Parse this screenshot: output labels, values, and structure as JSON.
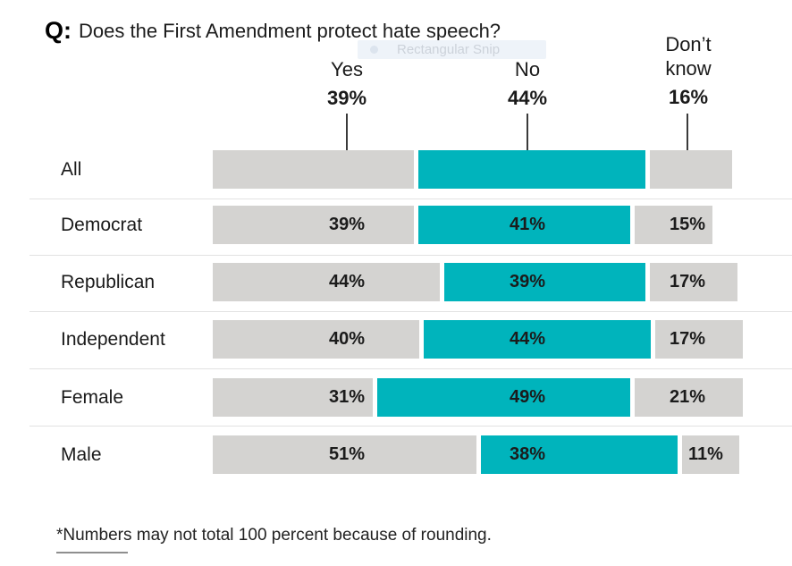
{
  "title": {
    "q_prefix": "Q:",
    "question": "Does the First Amendment protect hate speech?"
  },
  "snip_tooltip": {
    "label": "Rectangular Snip"
  },
  "header": {
    "columns": [
      {
        "label": "Yes",
        "value": "39%"
      },
      {
        "label": "No",
        "value": "44%"
      },
      {
        "label": "Don’t know",
        "value": "16%"
      }
    ]
  },
  "chart_data": {
    "type": "bar",
    "stacked": true,
    "orientation": "horizontal",
    "title": "Q: Does the First Amendment protect hate speech?",
    "categories": [
      "All",
      "Democrat",
      "Republican",
      "Independent",
      "Female",
      "Male"
    ],
    "series": [
      {
        "name": "Yes",
        "color": "#d4d3d1",
        "values": [
          39,
          39,
          44,
          40,
          31,
          51
        ]
      },
      {
        "name": "No",
        "color": "#00b4bc",
        "values": [
          44,
          41,
          39,
          44,
          49,
          38
        ]
      },
      {
        "name": "Don’t know",
        "color": "#d4d3d1",
        "values": [
          16,
          15,
          17,
          17,
          21,
          11
        ]
      }
    ],
    "value_suffix": "%",
    "value_labels_in_bars": [
      "Democrat",
      "Republican",
      "Independent",
      "Female",
      "Male"
    ],
    "legend_position": "top",
    "grid": false
  },
  "colors": {
    "accent_teal": "#00b4bc",
    "bar_gray": "#d4d3d1",
    "divider": "#e2e2e2",
    "text": "#1a1a1a"
  },
  "footnote": "*Numbers may not total 100 percent because of rounding."
}
